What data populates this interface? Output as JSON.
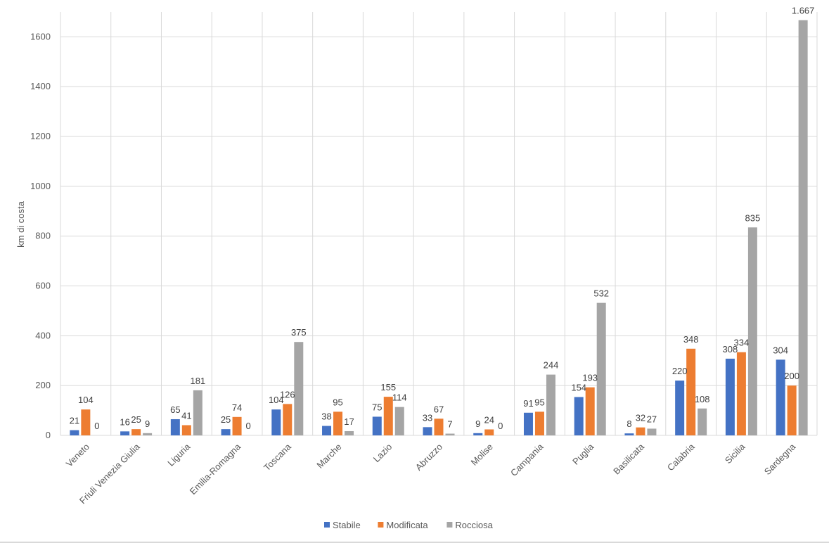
{
  "chart_data": {
    "type": "bar",
    "title": "",
    "xlabel": "",
    "ylabel": "km di costa",
    "ylim": [
      0,
      1700
    ],
    "yticks": [
      0,
      200,
      400,
      600,
      800,
      1000,
      1200,
      1400,
      1600
    ],
    "grid": true,
    "legend_position": "bottom",
    "categories": [
      "Veneto",
      "Friuli Venezia Giulia",
      "Liguria",
      "Emilia-Romagna",
      "Toscana",
      "Marche",
      "Lazio",
      "Abruzzo",
      "Molise",
      "Campania",
      "Puglia",
      "Basilicata",
      "Calabria",
      "Sicilia",
      "Sardegna"
    ],
    "series": [
      {
        "name": "Stabile",
        "color": "#4472c4",
        "values": [
          21,
          16,
          65,
          25,
          104,
          38,
          75,
          33,
          9,
          91,
          154,
          8,
          220,
          308,
          304
        ],
        "labels": [
          "21",
          "16",
          "65",
          "25",
          "104",
          "38",
          "75",
          "33",
          "9",
          "91",
          "154",
          "8",
          "220",
          "308",
          "304"
        ]
      },
      {
        "name": "Modificata",
        "color": "#ed7d31",
        "values": [
          104,
          25,
          41,
          74,
          126,
          95,
          155,
          67,
          24,
          95,
          193,
          32,
          348,
          334,
          200
        ],
        "labels": [
          "104",
          "25",
          "41",
          "74",
          "126",
          "95",
          "155",
          "67",
          "24",
          "95",
          "193",
          "32",
          "348",
          "334",
          "200"
        ]
      },
      {
        "name": "Rocciosa",
        "color": "#a5a5a5",
        "values": [
          0,
          9,
          181,
          0,
          375,
          17,
          114,
          7,
          0,
          244,
          532,
          27,
          108,
          835,
          1667
        ],
        "labels": [
          "0",
          "9",
          "181",
          "0",
          "375",
          "17",
          "114",
          "7",
          "0",
          "244",
          "532",
          "27",
          "108",
          "835",
          "1.667"
        ]
      }
    ]
  }
}
